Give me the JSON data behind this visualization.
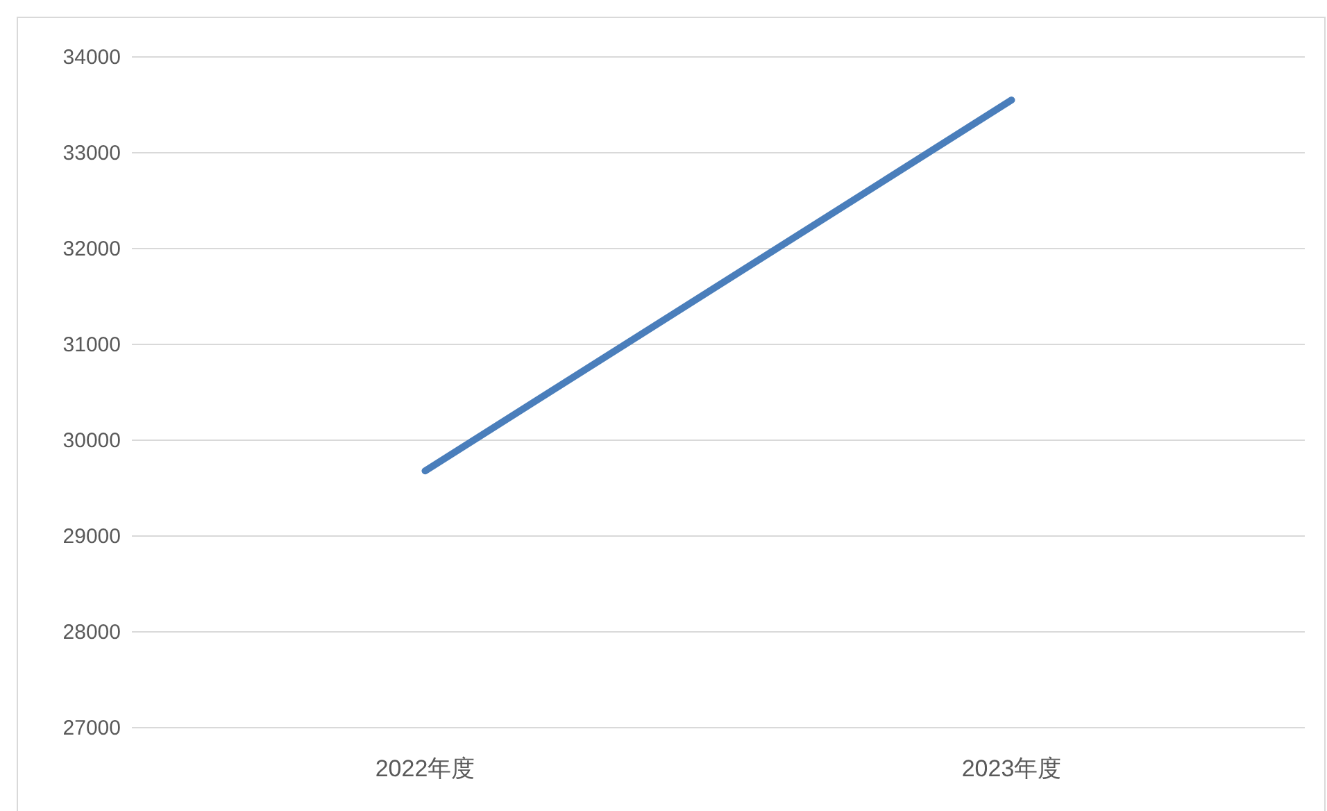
{
  "chart_data": {
    "type": "line",
    "categories": [
      "2022年度",
      "2023年度"
    ],
    "series": [
      {
        "color": "#4a7ebb",
        "values": [
          29680,
          33550
        ]
      }
    ],
    "ylim": [
      27000,
      34000
    ],
    "yticks": [
      27000,
      28000,
      29000,
      30000,
      31000,
      32000,
      33000,
      34000
    ],
    "grid": "y",
    "marker": "none",
    "line_style": "solid"
  }
}
